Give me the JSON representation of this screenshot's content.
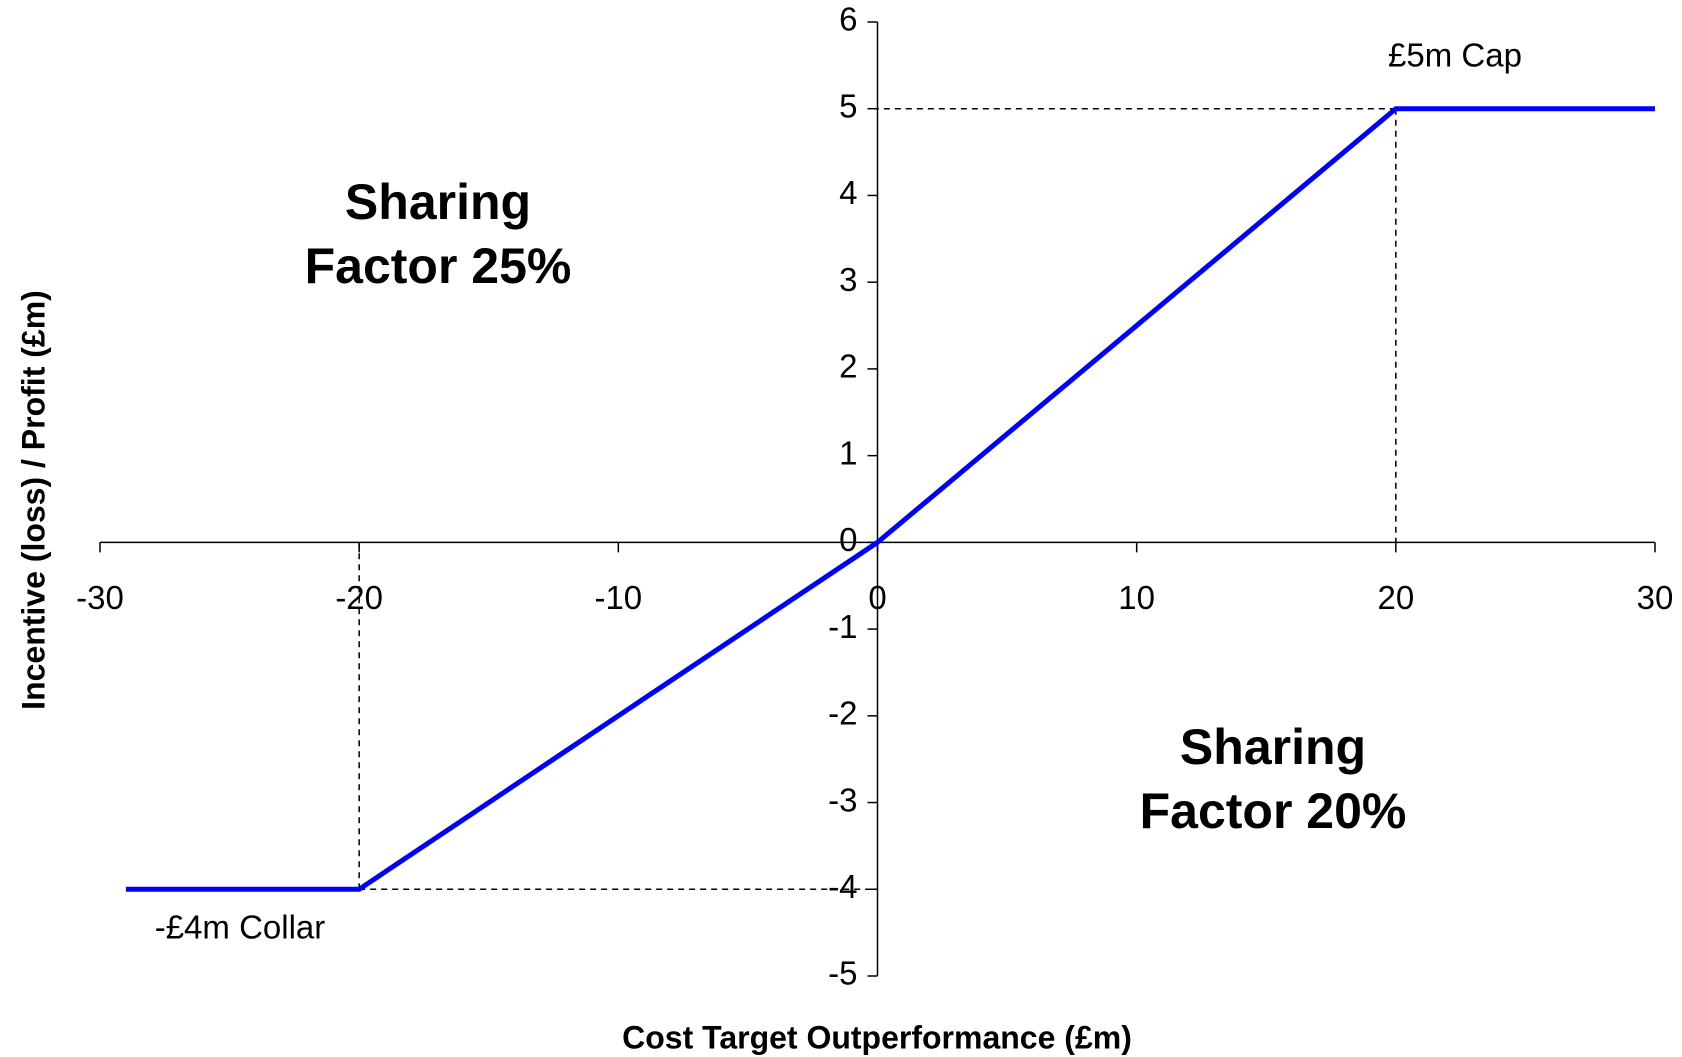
{
  "chart_data": {
    "type": "line",
    "xlabel": "Cost Target Outperformance (£m)",
    "ylabel": "Incentive (loss) / Profit (£m)",
    "annotations": [
      "£5m Cap",
      "-£4m Collar",
      "Sharing Factor 25%",
      "Sharing Factor 20%"
    ],
    "x": [
      -29,
      -20,
      -18,
      -16,
      -12,
      -10,
      -8,
      0,
      10,
      16,
      18,
      20,
      30
    ],
    "series": [
      {
        "color": "#0000ff",
        "values": [
          -4,
          -4,
          -3.6,
          -3.2,
          -2.4,
          -2,
          -1.6,
          0,
          2.5,
          4,
          4.5,
          5,
          5
        ]
      }
    ],
    "xlim": [
      -30,
      30
    ],
    "xticks": [
      -30,
      -20,
      -10,
      0,
      10,
      20,
      30
    ],
    "ylim": [
      -5,
      6
    ],
    "yticks": [
      -5,
      -4,
      -3,
      -2,
      -1,
      0,
      1,
      2,
      3,
      4,
      5,
      6
    ]
  }
}
